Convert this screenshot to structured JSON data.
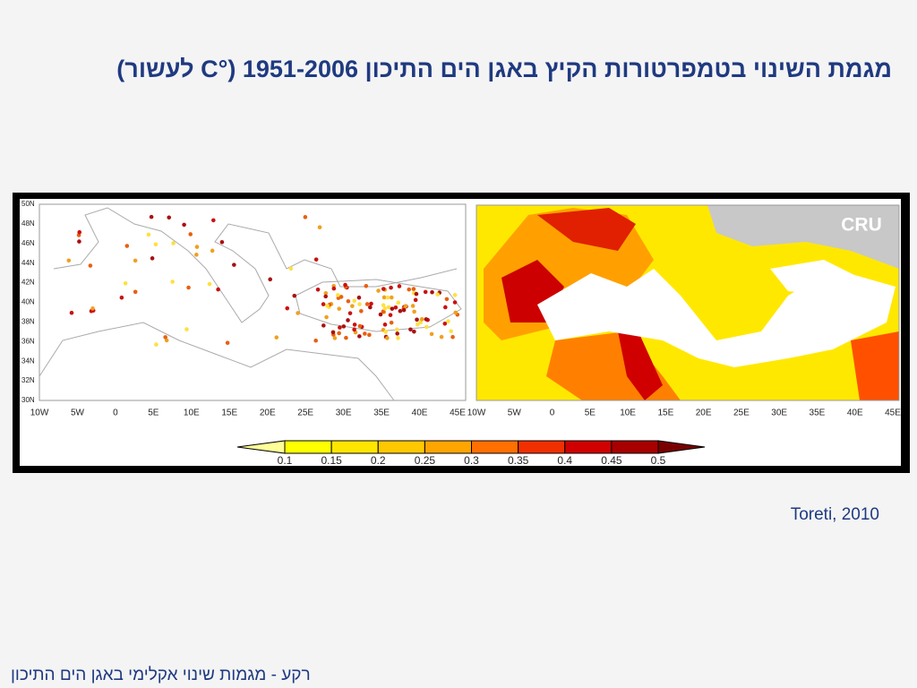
{
  "title": "מגמת השינוי בטמפרטורות הקיץ באגן הים התיכון 1951-2006 (°C לעשור)",
  "citation": "Toreti, 2010",
  "footer": "רקע - מגמות שינוי אקלימי באגן הים התיכון",
  "figure": {
    "left_map": {
      "lat_labels": [
        "50N",
        "48N",
        "46N",
        "44N",
        "42N",
        "40N",
        "38N",
        "36N",
        "34N",
        "32N",
        "30N"
      ],
      "lon_labels": [
        "10W",
        "5W",
        "0",
        "5E",
        "10E",
        "15E",
        "20E",
        "25E",
        "30E",
        "35E",
        "40E",
        "45E"
      ]
    },
    "right_map": {
      "label": "CRU",
      "lon_labels": [
        "10W",
        "5W",
        "0",
        "5E",
        "10E",
        "15E",
        "20E",
        "25E",
        "30E",
        "35E",
        "40E",
        "45E"
      ]
    },
    "colorbar": {
      "ticks": [
        0.1,
        0.15,
        0.2,
        0.25,
        0.3,
        0.35,
        0.4,
        0.45,
        0.5
      ],
      "colors": [
        "#ffff99",
        "#ffff00",
        "#ffe600",
        "#ffc800",
        "#ffa500",
        "#ff7000",
        "#f03000",
        "#d00000",
        "#a80000",
        "#7a0000"
      ]
    }
  }
}
